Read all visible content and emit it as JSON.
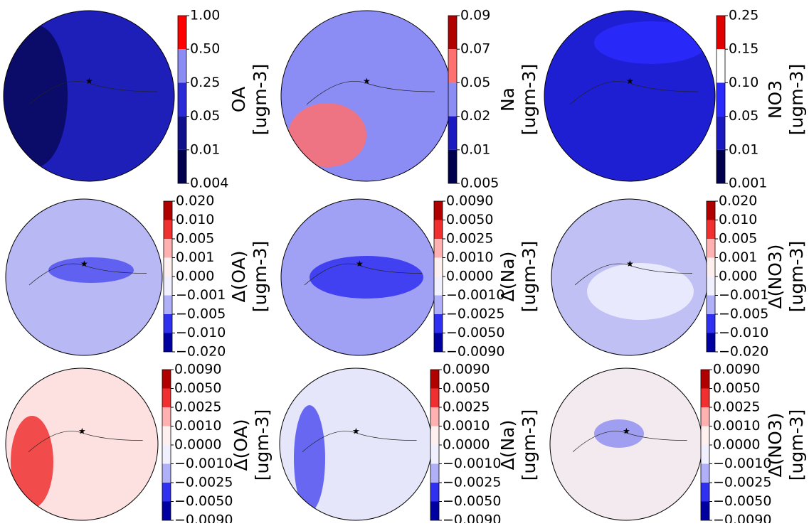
{
  "panels": [
    {
      "quantity": "OA",
      "unit": "[ugm-3]",
      "ticks": [
        "1.00",
        "0.50",
        "0.25",
        "0.05",
        "0.01",
        "0.004"
      ],
      "colors": [
        "#ff0000",
        "#8c8cf5",
        "#2a2ad6",
        "#10108a",
        "#00004f"
      ]
    },
    {
      "quantity": "Na",
      "unit": "[ugm-3]",
      "ticks": [
        "0.09",
        "0.07",
        "0.05",
        "0.02",
        "0.01",
        "0.005"
      ],
      "colors": [
        "#b00000",
        "#ff7070",
        "#8c8cf5",
        "#1a1ac0",
        "#00004f"
      ]
    },
    {
      "quantity": "NO3",
      "unit": "[ugm-3]",
      "ticks": [
        "0.25",
        "0.15",
        "0.10",
        "0.05",
        "0.01",
        "0.001"
      ],
      "colors": [
        "#e00000",
        "#ffffff",
        "#2a2aff",
        "#1a1ac0",
        "#00004f"
      ]
    },
    {
      "quantity": "Δ(OA)",
      "unit": "[ugm-3]",
      "ticks": [
        "0.020",
        "0.010",
        "0.005",
        "0.001",
        "0.000",
        "−0.001",
        "−0.005",
        "−0.010",
        "−0.020"
      ],
      "colors": [
        "#b00000",
        "#f03030",
        "#ffb0b0",
        "#fff0f0",
        "#f0f0ff",
        "#b0b0f8",
        "#3030f0",
        "#0000a0"
      ]
    },
    {
      "quantity": "Δ(Na)",
      "unit": "[ugm-3]",
      "ticks": [
        "0.0090",
        "0.0050",
        "0.0025",
        "0.0010",
        "0.0000",
        "−0.0010",
        "−0.0025",
        "−0.0050",
        "−0.0090"
      ],
      "colors": [
        "#b00000",
        "#f03030",
        "#ffb0b0",
        "#fff0f0",
        "#f0f0ff",
        "#b0b0f8",
        "#3030f0",
        "#0000a0"
      ]
    },
    {
      "quantity": "Δ(NO3)",
      "unit": "[ugm-3]",
      "ticks": [
        "0.020",
        "0.010",
        "0.005",
        "0.001",
        "0.000",
        "−0.001",
        "−0.005",
        "−0.010",
        "−0.020"
      ],
      "colors": [
        "#b00000",
        "#f03030",
        "#ffb0b0",
        "#fff0f0",
        "#f0f0ff",
        "#b0b0f8",
        "#3030f0",
        "#0000a0"
      ]
    },
    {
      "quantity": "Δ(OA)",
      "unit": "[ugm-3]",
      "ticks": [
        "0.0090",
        "0.0050",
        "0.0025",
        "0.0010",
        "0.0000",
        "−0.0010",
        "−0.0025",
        "−0.0050",
        "−0.0090"
      ],
      "colors": [
        "#b00000",
        "#f03030",
        "#ffb0b0",
        "#fff0f0",
        "#f0f0ff",
        "#b0b0f8",
        "#3030f0",
        "#0000a0"
      ]
    },
    {
      "quantity": "Δ(Na)",
      "unit": "[ugm-3]",
      "ticks": [
        "0.0090",
        "0.0050",
        "0.0025",
        "0.0010",
        "0.0000",
        "−0.0010",
        "−0.0025",
        "−0.0050",
        "−0.0090"
      ],
      "colors": [
        "#b00000",
        "#f03030",
        "#ffb0b0",
        "#fff0f0",
        "#f0f0ff",
        "#b0b0f8",
        "#3030f0",
        "#0000a0"
      ]
    },
    {
      "quantity": "Δ(NO3)",
      "unit": "[ugm-3]",
      "ticks": [
        "0.0090",
        "0.0050",
        "0.0025",
        "0.0010",
        "0.0000",
        "−0.0010",
        "−0.0025",
        "−0.0050",
        "−0.0090"
      ],
      "colors": [
        "#b00000",
        "#f03030",
        "#ffb0b0",
        "#fff0f0",
        "#f0f0ff",
        "#b0b0f8",
        "#3030f0",
        "#0000a0"
      ]
    }
  ]
}
